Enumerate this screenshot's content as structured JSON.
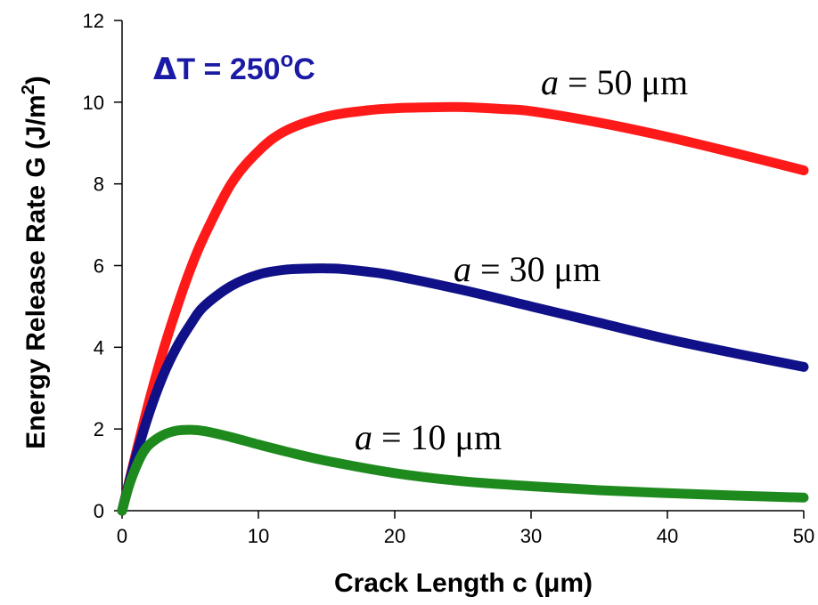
{
  "chart_data": {
    "type": "line",
    "xlabel": "Crack Length c (μm)",
    "ylabel_main": "Energy Release Rate G (J/m",
    "ylabel_sup": "2",
    "ylabel_close": ")",
    "xlim": [
      0,
      50
    ],
    "ylim": [
      0,
      12
    ],
    "xticks": [
      0,
      10,
      20,
      30,
      40,
      50
    ],
    "yticks": [
      0,
      2,
      4,
      6,
      8,
      10,
      12
    ],
    "grid": false,
    "annotation": {
      "delta": "Δ",
      "text": "T = 250",
      "sup": "o",
      "unit": "C",
      "color": "#1a1aa6"
    },
    "series": [
      {
        "name": "a = 50 μm",
        "label_var": "a",
        "label_rest": " = 50 μm",
        "color": "#ff1a1a",
        "x": [
          0,
          1,
          2,
          3,
          4,
          5,
          6,
          8,
          10,
          12,
          15,
          18,
          20,
          22,
          25,
          28,
          30,
          35,
          40,
          45,
          50
        ],
        "y": [
          0,
          1.38,
          2.7,
          3.9,
          4.95,
          5.9,
          6.7,
          8.0,
          8.8,
          9.3,
          9.65,
          9.8,
          9.85,
          9.87,
          9.88,
          9.83,
          9.78,
          9.5,
          9.15,
          8.75,
          8.33
        ]
      },
      {
        "name": "a = 30 μm",
        "label_var": "a",
        "label_rest": " = 30 μm",
        "color": "#101088",
        "x": [
          0,
          1,
          2,
          3,
          4,
          5,
          6,
          8,
          10,
          12,
          14,
          15,
          16,
          18,
          20,
          25,
          30,
          35,
          40,
          45,
          50
        ],
        "y": [
          0,
          1.3,
          2.4,
          3.3,
          4.0,
          4.55,
          5.0,
          5.5,
          5.78,
          5.9,
          5.93,
          5.93,
          5.92,
          5.85,
          5.75,
          5.4,
          5.0,
          4.6,
          4.2,
          3.85,
          3.52
        ]
      },
      {
        "name": "a = 10 μm",
        "label_var": "a",
        "label_rest": " = 10 μm",
        "color": "#1e8a1e",
        "x": [
          0,
          0.5,
          1,
          1.5,
          2,
          3,
          4,
          5,
          6,
          8,
          10,
          12,
          15,
          20,
          25,
          30,
          35,
          40,
          45,
          50
        ],
        "y": [
          0,
          0.6,
          1.05,
          1.4,
          1.62,
          1.85,
          1.96,
          1.98,
          1.95,
          1.8,
          1.62,
          1.45,
          1.22,
          0.92,
          0.72,
          0.6,
          0.5,
          0.43,
          0.37,
          0.32
        ]
      }
    ]
  }
}
